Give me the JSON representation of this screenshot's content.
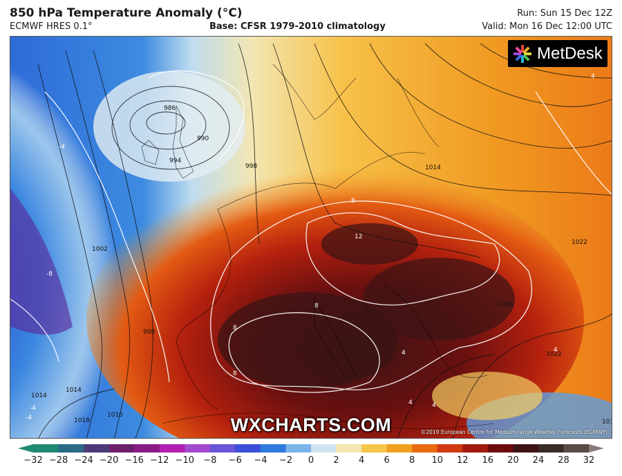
{
  "header": {
    "title": "850 hPa Temperature Anomaly (°C)",
    "model": "ECMWF HRES 0.1°",
    "base": "Base: CFSR 1979-2010 climatology",
    "run": "Run: Sun 15 Dec 12Z",
    "valid": "Valid: Mon 16 Dec 12:00 UTC"
  },
  "logo": {
    "text": "MetDesk",
    "icon": "metdesk-star-icon"
  },
  "watermark": "WXCHARTS.COM",
  "copyright": "©2019 European Centre for Medium-range Weather Forecasts (ECMWF)",
  "isobar_labels": [
    "986",
    "990",
    "994",
    "998",
    "1002",
    "998",
    "1014",
    "1010",
    "1018",
    "1014",
    "1014",
    "1026",
    "1022",
    "1022",
    "1014"
  ],
  "anomaly_labels": [
    "-4",
    "-8",
    "8",
    "12",
    "8",
    "8",
    "8",
    "4",
    "4",
    "-4",
    "-4",
    "4",
    "4",
    "4"
  ],
  "colorbar": {
    "ticks": [
      "−32",
      "−28",
      "−24",
      "−20",
      "−16",
      "−12",
      "−10",
      "−8",
      "−6",
      "−4",
      "−2",
      "0",
      "2",
      "4",
      "6",
      "8",
      "10",
      "12",
      "16",
      "20",
      "24",
      "28",
      "32"
    ],
    "colors": [
      "#1f8a74",
      "#2a6a86",
      "#4a3a78",
      "#6c1f6b",
      "#8a1a86",
      "#b21fb0",
      "#a24ad0",
      "#6a55d8",
      "#3b4fd8",
      "#2e7ae0",
      "#7ab4e8",
      "#cfe2ef",
      "#f4e6b0",
      "#f6c64a",
      "#f0a020",
      "#e86a10",
      "#cf3a10",
      "#a21a0e",
      "#6e0d10",
      "#3f1414",
      "#3a2a2a",
      "#5a4a4a",
      "#8a7a7a"
    ]
  }
}
